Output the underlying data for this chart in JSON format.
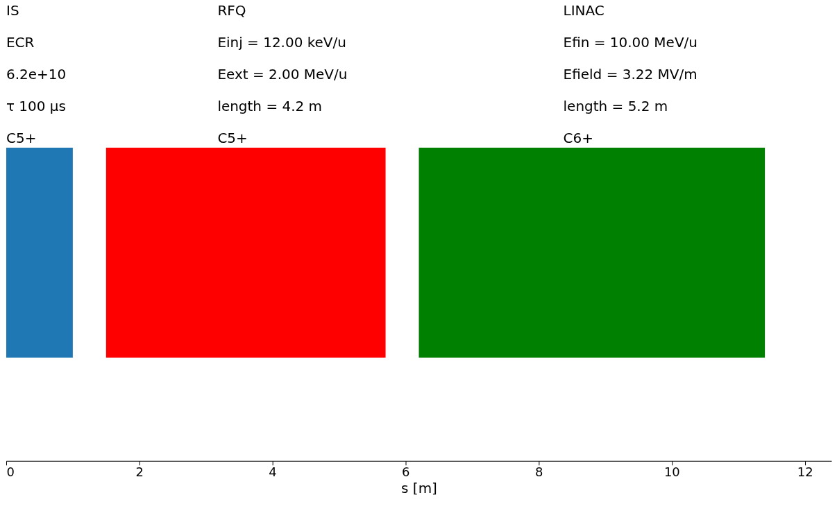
{
  "chart_data": {
    "type": "bar",
    "orientation": "horizontal",
    "xlabel": "s [m]",
    "categories": [
      null
    ],
    "series": [
      {
        "color": "#1f77b4",
        "values": [
          1.0
        ],
        "base": [
          0
        ]
      },
      {
        "color": "#ff0000",
        "values": [
          4.2
        ],
        "base": [
          1.5
        ]
      },
      {
        "color": "#008000",
        "values": [
          5.2
        ],
        "base": [
          6.2
        ]
      }
    ],
    "xlim": [
      0,
      12.4
    ],
    "xticks": [
      0,
      2,
      4,
      6,
      8,
      10,
      12
    ],
    "grid": false,
    "annotations": [
      "IS\nECR\n6.2e+10\nτ 100 μs\nC5+",
      "RFQ\nEinj = 12.00 keV/u\nEext = 2.00 MeV/u\nlength = 4.2 m\nC5+",
      "LINAC\nEfin = 10.00 MeV/u\nEfield = 3.22 MV/m\nlength = 5.2 m\nC6+"
    ]
  }
}
